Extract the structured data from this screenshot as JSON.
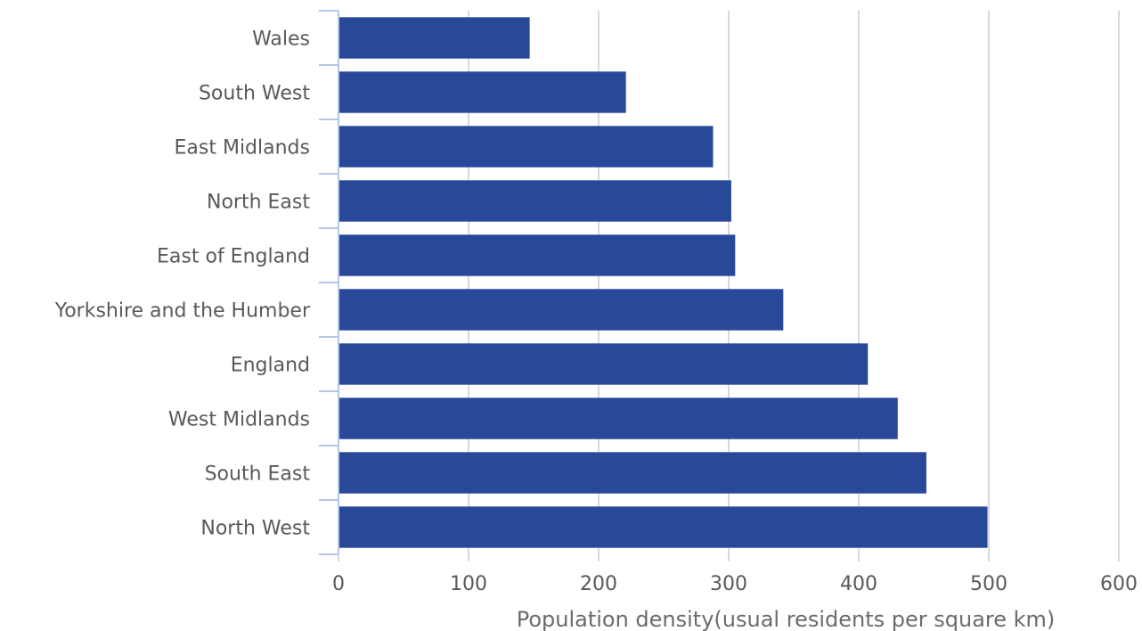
{
  "chart_data": {
    "type": "bar",
    "orientation": "horizontal",
    "categories": [
      "Wales",
      "South West",
      "East Midlands",
      "North East",
      "East of England",
      "Yorkshire and the Humber",
      "England",
      "West Midlands",
      "South East",
      "North West"
    ],
    "values": [
      147,
      221,
      288,
      302,
      305,
      342,
      407,
      430,
      452,
      499
    ],
    "xlabel": "Population density(usual residents per square km)",
    "xlim": [
      0,
      600
    ],
    "xticks": [
      "0",
      "100",
      "200",
      "300",
      "400",
      "500",
      "600"
    ],
    "grid": "vertical",
    "legend": "none",
    "colors": {
      "bar": "#284899",
      "grid": "#d9d9d9",
      "axis": "#b4c7e7",
      "text": "#595959"
    }
  }
}
